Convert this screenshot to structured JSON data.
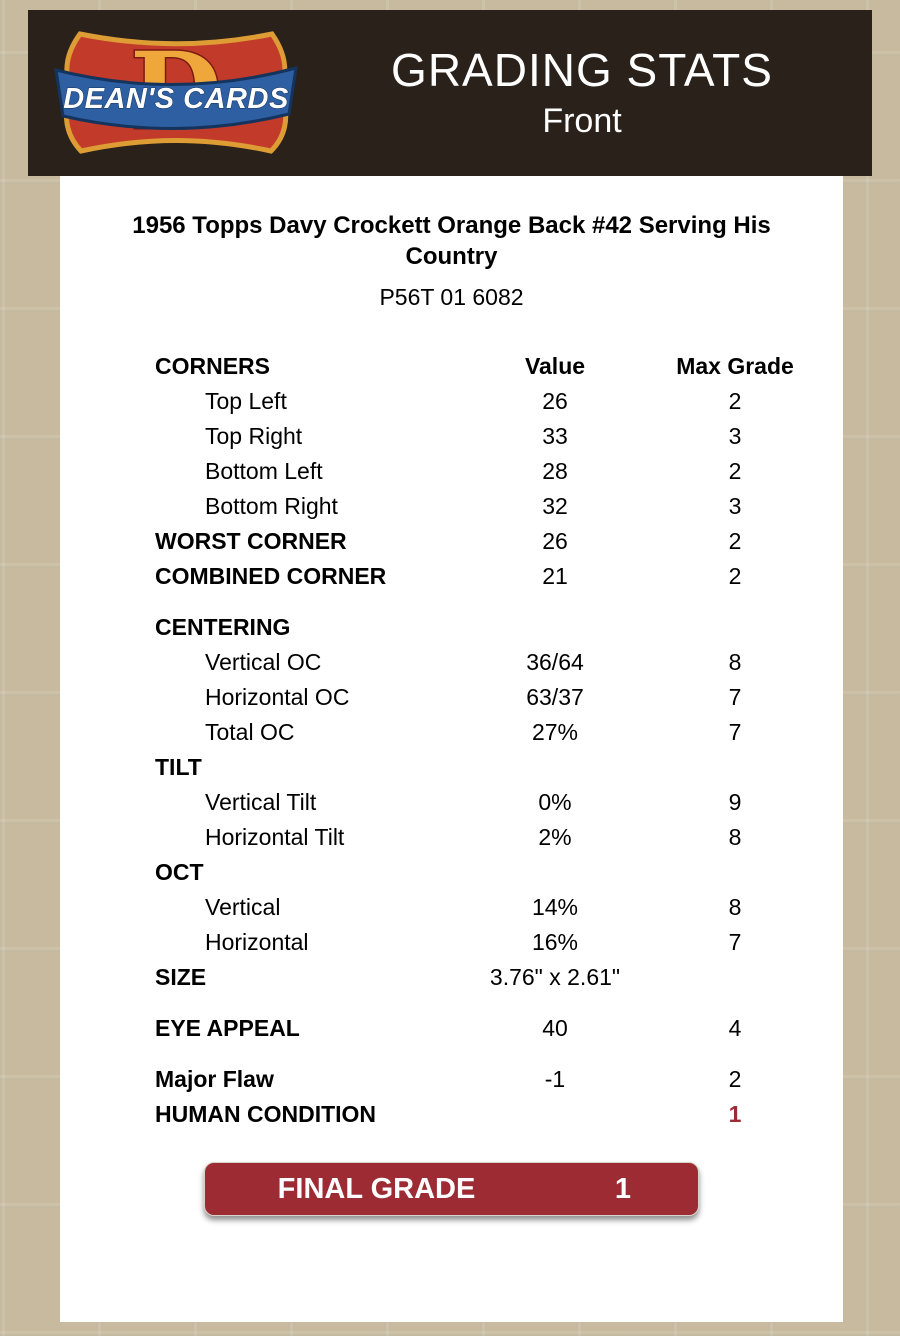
{
  "header": {
    "title": "GRADING STATS",
    "subtitle": "Front",
    "logo": {
      "text": "DEAN'S CARDS",
      "letter": "D"
    }
  },
  "card": {
    "title": "1956 Topps Davy Crockett Orange Back #42  Serving His Country",
    "serial": "P56T 01 6082"
  },
  "table": {
    "rows": [
      {
        "label": "CORNERS",
        "value": "Value",
        "max": "Max Grade",
        "kind": "header"
      },
      {
        "label": "Top Left",
        "value": "26",
        "max": "2",
        "kind": "indent"
      },
      {
        "label": "Top Right",
        "value": "33",
        "max": "3",
        "kind": "indent"
      },
      {
        "label": "Bottom Left",
        "value": "28",
        "max": "2",
        "kind": "indent"
      },
      {
        "label": "Bottom Right",
        "value": "32",
        "max": "3",
        "kind": "indent"
      },
      {
        "label": "WORST CORNER",
        "value": "26",
        "max": "2",
        "kind": "section"
      },
      {
        "label": "COMBINED CORNER",
        "value": "21",
        "max": "2",
        "kind": "section"
      },
      {
        "label": "CENTERING",
        "value": "",
        "max": "",
        "kind": "section",
        "gap": true
      },
      {
        "label": "Vertical OC",
        "value": "36/64",
        "max": "8",
        "kind": "indent"
      },
      {
        "label": "Horizontal OC",
        "value": "63/37",
        "max": "7",
        "kind": "indent"
      },
      {
        "label": "Total OC",
        "value": "27%",
        "max": "7",
        "kind": "indent"
      },
      {
        "label": "TILT",
        "value": "",
        "max": "",
        "kind": "section"
      },
      {
        "label": "Vertical Tilt",
        "value": "0%",
        "max": "9",
        "kind": "indent"
      },
      {
        "label": "Horizontal Tilt",
        "value": "2%",
        "max": "8",
        "kind": "indent"
      },
      {
        "label": "OCT",
        "value": "",
        "max": "",
        "kind": "section"
      },
      {
        "label": "Vertical",
        "value": "14%",
        "max": "8",
        "kind": "indent"
      },
      {
        "label": "Horizontal",
        "value": "16%",
        "max": "7",
        "kind": "indent"
      },
      {
        "label": "SIZE",
        "value": "3.76\" x 2.61\"",
        "max": "",
        "kind": "section"
      },
      {
        "label": "EYE APPEAL",
        "value": "40",
        "max": "4",
        "kind": "section",
        "gap": true
      },
      {
        "label": "Major Flaw",
        "value": "-1",
        "max": "2",
        "kind": "section",
        "gap": true
      },
      {
        "label": "HUMAN CONDITION",
        "value": "",
        "max": "1",
        "kind": "section",
        "max_red": true
      }
    ]
  },
  "final_grade": {
    "label": "FINAL GRADE",
    "value": "1"
  },
  "colors": {
    "accent_red": "#9d2b33",
    "header_bg": "#29211a",
    "page_bg": "#c7ba9e"
  }
}
